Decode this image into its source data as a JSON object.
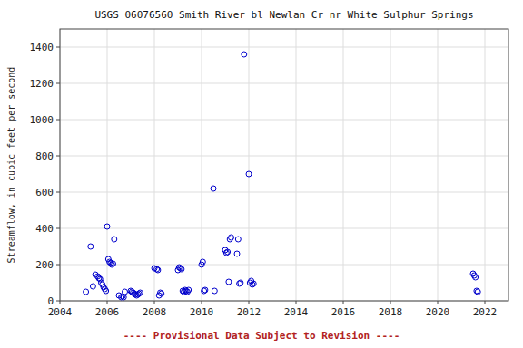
{
  "chart_data": {
    "type": "scatter",
    "title": "USGS 06076560 Smith River bl Newlan Cr nr White Sulphur Springs",
    "subtitle": "---- Provisional Data Subject to Revision ----",
    "ylabel": "Streamflow, in cubic feet per second",
    "color": "#0000cc",
    "marker": "circle",
    "grid": true,
    "xlim": [
      2004,
      2023
    ],
    "ylim": [
      0,
      1500
    ],
    "xticks": [
      2004,
      2006,
      2008,
      2010,
      2012,
      2014,
      2016,
      2018,
      2020,
      2022
    ],
    "yticks": [
      0,
      200,
      400,
      600,
      800,
      1000,
      1200,
      1400
    ],
    "x": [
      2005.1,
      2005.3,
      2005.4,
      2005.5,
      2005.6,
      2005.65,
      2005.7,
      2005.75,
      2005.8,
      2005.85,
      2005.9,
      2005.95,
      2006.0,
      2006.05,
      2006.1,
      2006.15,
      2006.2,
      2006.25,
      2006.3,
      2006.5,
      2006.6,
      2006.65,
      2006.7,
      2006.75,
      2007.0,
      2007.05,
      2007.1,
      2007.15,
      2007.2,
      2007.25,
      2007.3,
      2007.35,
      2007.4,
      2008.0,
      2008.1,
      2008.15,
      2008.2,
      2008.25,
      2008.3,
      2009.0,
      2009.05,
      2009.1,
      2009.15,
      2009.2,
      2009.25,
      2009.3,
      2009.35,
      2009.4,
      2009.45,
      2010.0,
      2010.05,
      2010.1,
      2010.15,
      2010.5,
      2010.55,
      2011.0,
      2011.05,
      2011.1,
      2011.15,
      2011.2,
      2011.25,
      2011.5,
      2011.55,
      2011.6,
      2011.65,
      2011.8,
      2012.0,
      2012.05,
      2012.1,
      2012.15,
      2012.2,
      2021.5,
      2021.55,
      2021.6,
      2021.65,
      2021.7
    ],
    "values": [
      50,
      300,
      80,
      145,
      135,
      125,
      120,
      100,
      90,
      75,
      65,
      55,
      410,
      230,
      215,
      210,
      200,
      205,
      340,
      30,
      20,
      25,
      20,
      50,
      55,
      50,
      45,
      40,
      35,
      30,
      35,
      40,
      45,
      180,
      175,
      170,
      30,
      45,
      40,
      170,
      185,
      180,
      175,
      55,
      50,
      60,
      55,
      50,
      60,
      200,
      215,
      55,
      60,
      620,
      55,
      280,
      265,
      270,
      105,
      340,
      350,
      260,
      340,
      95,
      100,
      1360,
      700,
      100,
      110,
      90,
      95,
      150,
      140,
      130,
      55,
      50
    ]
  }
}
